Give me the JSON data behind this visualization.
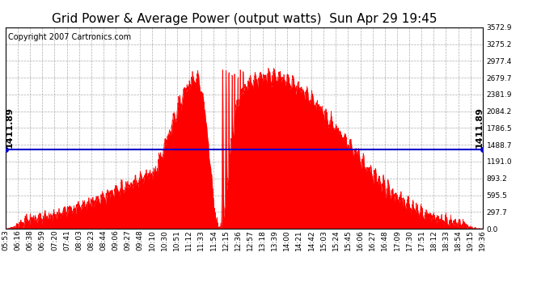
{
  "title": "Grid Power & Average Power (output watts)  Sun Apr 29 19:45",
  "copyright": "Copyright 2007 Cartronics.com",
  "avg_power": 1411.89,
  "ymax": 3572.9,
  "yticks": [
    0.0,
    297.7,
    595.5,
    893.2,
    1191.0,
    1488.7,
    1786.5,
    2084.2,
    2381.9,
    2679.7,
    2977.4,
    3275.2,
    3572.9
  ],
  "bg_color": "#ffffff",
  "plot_bg_color": "#ffffff",
  "fill_color": "#ff0000",
  "line_color": "#ff0000",
  "avg_line_color": "#0000cc",
  "grid_color": "#999999",
  "xtick_labels": [
    "05:53",
    "06:16",
    "06:38",
    "06:59",
    "07:20",
    "07:41",
    "08:03",
    "08:23",
    "08:44",
    "09:06",
    "09:27",
    "09:48",
    "10:10",
    "10:30",
    "10:51",
    "11:12",
    "11:33",
    "11:54",
    "12:15",
    "12:36",
    "12:57",
    "13:18",
    "13:39",
    "14:00",
    "14:21",
    "14:42",
    "15:03",
    "15:24",
    "15:45",
    "16:06",
    "16:27",
    "16:48",
    "17:09",
    "17:30",
    "17:51",
    "18:12",
    "18:33",
    "18:54",
    "19:15",
    "19:36"
  ],
  "title_fontsize": 11,
  "tick_fontsize": 6.5,
  "copyright_fontsize": 7,
  "avg_label_fontsize": 8
}
